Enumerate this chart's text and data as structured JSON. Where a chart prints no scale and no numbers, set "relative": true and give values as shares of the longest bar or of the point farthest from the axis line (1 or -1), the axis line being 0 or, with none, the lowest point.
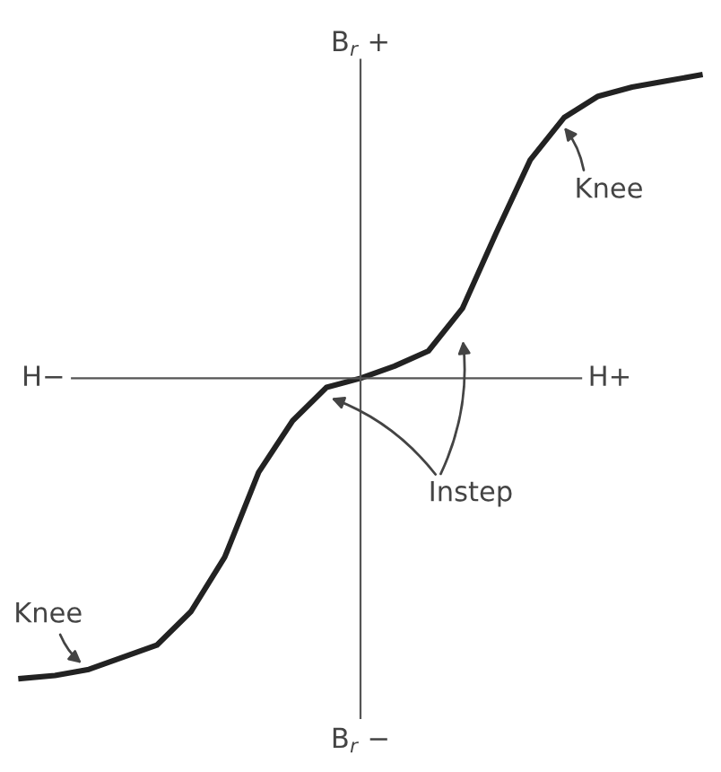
{
  "chart_data": {
    "type": "line",
    "relative": true,
    "xlabel": "H+",
    "ylabel": "B$_{r}$ +",
    "categories": [
      null,
      null,
      null,
      null,
      null,
      null,
      null,
      null,
      null,
      null,
      null,
      null,
      null,
      null,
      null,
      null,
      null,
      null,
      null,
      null,
      null
    ],
    "series": [
      {
        "color": "#222222",
        "values": [
          -0.99,
          -0.98,
          -0.96,
          -0.92,
          -0.88,
          -0.77,
          -0.59,
          -0.31,
          -0.14,
          -0.03,
          0,
          0.04,
          0.09,
          0.23,
          0.48,
          0.72,
          0.86,
          0.93,
          0.96,
          0.98,
          1.0
        ]
      }
    ],
    "annotations": [
      "H−",
      "B$_{r}$ −",
      "Knee",
      "Instep",
      "Knee"
    ],
    "marker": "none",
    "line_style": "solid"
  }
}
